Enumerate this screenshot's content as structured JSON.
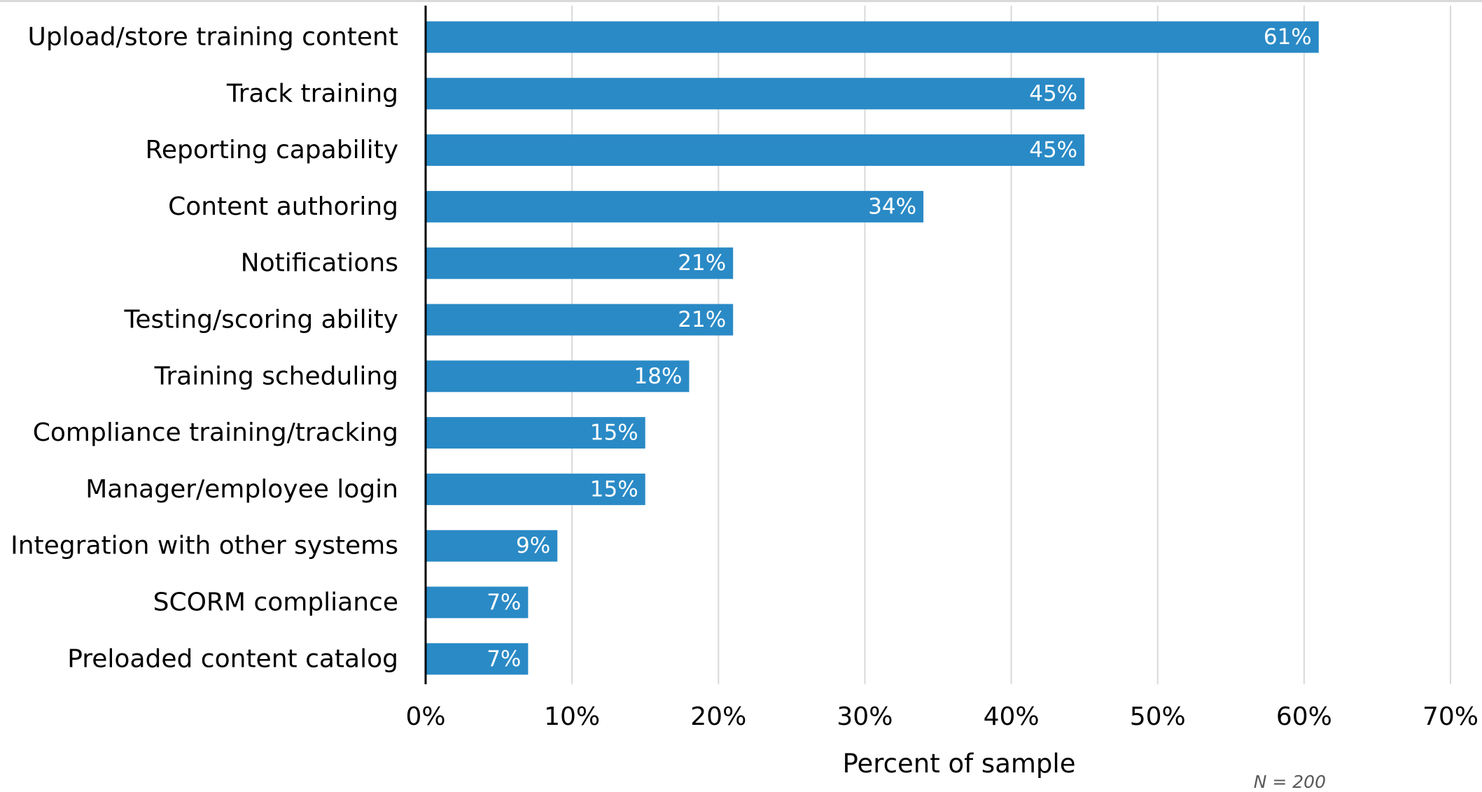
{
  "chart_data": {
    "type": "bar",
    "orientation": "horizontal",
    "categories": [
      "Upload/store training content",
      "Track training",
      "Reporting capability",
      "Content authoring",
      "Notifications",
      "Testing/scoring ability",
      "Training scheduling",
      "Compliance training/tracking",
      "Manager/employee login",
      "Integration with other systems",
      "SCORM compliance",
      "Preloaded content catalog"
    ],
    "values": [
      61,
      45,
      45,
      34,
      21,
      21,
      18,
      15,
      15,
      9,
      7,
      7
    ],
    "data_labels": [
      "61%",
      "45%",
      "45%",
      "34%",
      "21%",
      "21%",
      "18%",
      "15%",
      "15%",
      "9%",
      "7%",
      "7%"
    ],
    "xlim": [
      0,
      70
    ],
    "x_ticks": [
      0,
      10,
      20,
      30,
      40,
      50,
      60,
      70
    ],
    "x_tick_labels": [
      "0%",
      "10%",
      "20%",
      "30%",
      "40%",
      "50%",
      "60%",
      "70%"
    ],
    "xlabel": "Percent of sample",
    "ylabel": "",
    "title": "",
    "note": "N = 200",
    "grid": "vertical",
    "legend": "none",
    "bar_color": "#2a8ac6"
  }
}
